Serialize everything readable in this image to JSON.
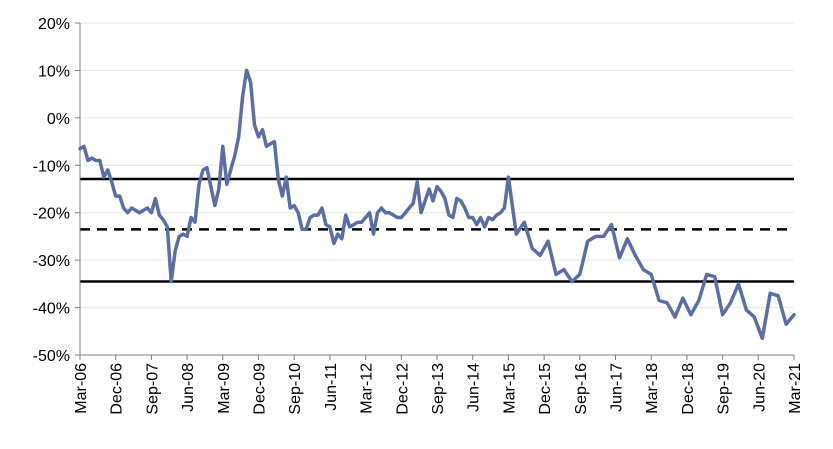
{
  "chart_data": {
    "type": "line",
    "title": "",
    "xlabel": "",
    "ylabel": "",
    "ylim": [
      -50,
      20
    ],
    "yticks": [
      "20%",
      "10%",
      "0%",
      "-10%",
      "-20%",
      "-30%",
      "-40%",
      "-50%"
    ],
    "ytick_values": [
      20,
      10,
      0,
      -10,
      -20,
      -30,
      -40,
      -50
    ],
    "xticks": [
      "Mar-06",
      "Dec-06",
      "Sep-07",
      "Jun-08",
      "Mar-09",
      "Dec-09",
      "Sep-10",
      "Jun-11",
      "Mar-12",
      "Dec-12",
      "Sep-13",
      "Jun-14",
      "Mar-15",
      "Dec-15",
      "Sep-16",
      "Jun-17",
      "Mar-18",
      "Dec-18",
      "Sep-19",
      "Jun-20",
      "Mar-21"
    ],
    "grid": true,
    "legend": "none",
    "colors": {
      "series": "#5b6ea6",
      "reference": "#000000",
      "grid": "#e6e6e6"
    },
    "reference_lines": [
      {
        "value": -12.9,
        "style": "solid"
      },
      {
        "value": -23.5,
        "style": "dashed"
      },
      {
        "value": -34.5,
        "style": "solid"
      }
    ],
    "series": [
      {
        "x_months": [
          0,
          1,
          2,
          3,
          4,
          5,
          6,
          7,
          8,
          9,
          10,
          11,
          12,
          13,
          14,
          15,
          16,
          17,
          18,
          19,
          20,
          21,
          22,
          23,
          24,
          25,
          26,
          27,
          28,
          29,
          30,
          31,
          32,
          33,
          34,
          35,
          36,
          37,
          38,
          39,
          40,
          41,
          42,
          43,
          44,
          45,
          46,
          47,
          48,
          49,
          50,
          51,
          52,
          53,
          54,
          55,
          56,
          57,
          58,
          59,
          60,
          61,
          62,
          63,
          64,
          65,
          66,
          67,
          68,
          69,
          70,
          71,
          72,
          73,
          74,
          75,
          76,
          77,
          78,
          79,
          80,
          81,
          82,
          83,
          84,
          85,
          86,
          87,
          88,
          89,
          90,
          91,
          92,
          93,
          94,
          95,
          96,
          97,
          98,
          99,
          100,
          101,
          102,
          103,
          104,
          105,
          106,
          107,
          108,
          110,
          112,
          114,
          116,
          118,
          120,
          122,
          124,
          126,
          128,
          130,
          132,
          134,
          136,
          138,
          140,
          142,
          144,
          146,
          148,
          150,
          152,
          154,
          156,
          158,
          160,
          162,
          164,
          166,
          168,
          170,
          172,
          174,
          176,
          178,
          180
        ],
        "values": [
          -6.5,
          -6,
          -9,
          -8.5,
          -9,
          -9,
          -12.5,
          -11,
          -13.5,
          -16.5,
          -16.5,
          -19,
          -20,
          -19,
          -19.5,
          -20,
          -19.5,
          -19,
          -20,
          -17,
          -20.5,
          -21.5,
          -23,
          -34.5,
          -28,
          -25,
          -24.5,
          -25,
          -21,
          -22,
          -14,
          -11,
          -10.5,
          -14.5,
          -18.5,
          -15,
          -6,
          -14,
          -11,
          -8,
          -4,
          4.5,
          10,
          7.5,
          -1.5,
          -4,
          -2.5,
          -6,
          -5.5,
          -5,
          -13,
          -16.5,
          -12.5,
          -19,
          -18.5,
          -20,
          -23.5,
          -23.5,
          -21,
          -20.5,
          -20.5,
          -19,
          -22.5,
          -23,
          -26.5,
          -24.5,
          -25.5,
          -20.5,
          -23,
          -22.5,
          -22,
          -22,
          -21,
          -20,
          -24.5,
          -20,
          -19,
          -20,
          -20,
          -20.5,
          -21,
          -21,
          -20,
          -19,
          -18,
          -13.5,
          -20,
          -17.5,
          -15,
          -17.5,
          -14.5,
          -15.5,
          -17,
          -20.5,
          -21,
          -17,
          -17.5,
          -19,
          -21,
          -21,
          -22.5,
          -21,
          -23,
          -21,
          -21.5,
          -20.5,
          -20,
          -19,
          -12.5,
          -24.5,
          -22,
          -27.5,
          -29,
          -26,
          -33,
          -32,
          -34.5,
          -33,
          -26,
          -25,
          -25,
          -22.5,
          -29.5,
          -25.5,
          -29,
          -32,
          -33,
          -38.5,
          -39,
          -42,
          -38,
          -41.5,
          -38.5,
          -33,
          -33.5,
          -41.5,
          -39,
          -35,
          -40.5,
          -42,
          -46.5,
          -37,
          -37.5,
          -43.5,
          -41.5
        ]
      }
    ]
  }
}
